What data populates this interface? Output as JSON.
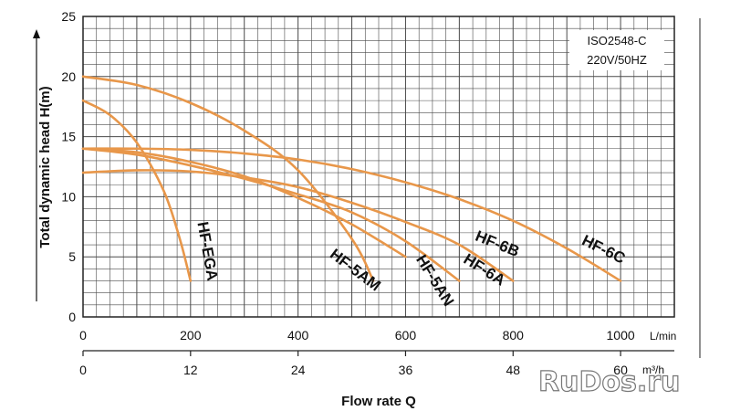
{
  "chart_data": {
    "type": "line",
    "ylabel": "Total dynamic head H(m)",
    "xlabel": "Flow rate Q",
    "x_unit": "L/min",
    "x2_unit": "m³/h",
    "xlim": [
      0,
      1100
    ],
    "ylim": [
      0,
      25
    ],
    "x_ticks": [
      0,
      200,
      400,
      600,
      800,
      1000
    ],
    "x2_ticks": [
      0,
      12,
      24,
      36,
      48,
      60
    ],
    "y_ticks": [
      0,
      5,
      10,
      15,
      20,
      25
    ],
    "grid": true,
    "notes": [
      "ISO2548-C",
      "220V/50HZ"
    ],
    "series": [
      {
        "name": "HF-EGA",
        "x": [
          0,
          50,
          100,
          150,
          180,
          200
        ],
        "y": [
          18,
          16.8,
          14.5,
          10.5,
          6.5,
          3
        ]
      },
      {
        "name": "HF-5AM",
        "x": [
          0,
          100,
          200,
          300,
          400,
          500,
          540
        ],
        "y": [
          20,
          19.3,
          17.8,
          15.5,
          12.2,
          6.5,
          3
        ]
      },
      {
        "name": "HF-5AN",
        "x": [
          0,
          100,
          200,
          300,
          400,
          500,
          600
        ],
        "y": [
          14,
          13.7,
          12.9,
          11.7,
          9.9,
          7.7,
          5
        ]
      },
      {
        "name": "HF-6A",
        "x": [
          0,
          100,
          200,
          300,
          400,
          500,
          600,
          700
        ],
        "y": [
          14,
          13.5,
          12.6,
          11.5,
          10.2,
          8.7,
          6.3,
          3
        ]
      },
      {
        "name": "HF-6B",
        "x": [
          0,
          100,
          200,
          300,
          400,
          500,
          600,
          700,
          800
        ],
        "y": [
          12,
          12.2,
          12.1,
          11.6,
          10.8,
          9.5,
          7.9,
          6,
          3
        ]
      },
      {
        "name": "HF-6C",
        "x": [
          0,
          100,
          200,
          300,
          400,
          500,
          600,
          700,
          800,
          900,
          1000
        ],
        "y": [
          14,
          14,
          13.9,
          13.6,
          13.1,
          12.3,
          11.2,
          9.8,
          8,
          5.7,
          3
        ]
      }
    ]
  },
  "watermark": "RuDos.ru",
  "colors": {
    "curve": "#e8974a",
    "grid": "#4a4a4a"
  }
}
